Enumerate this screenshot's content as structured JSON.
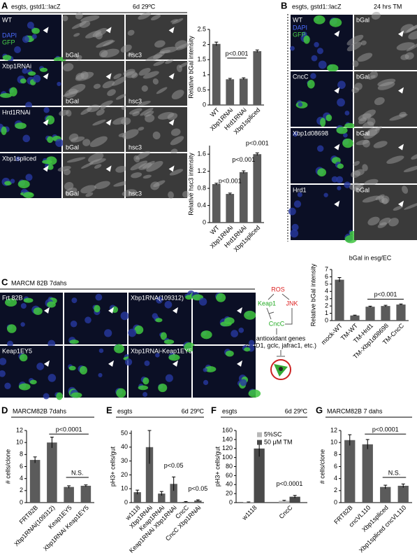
{
  "panels": {
    "A": {
      "label": "A",
      "header": "esgts, gstd1::lacZ",
      "condition": "6d 29ºC",
      "rows": [
        "WT",
        "Xbp1RNAi",
        "Hrd1RNAi",
        "Xbp1spliced"
      ],
      "stains": [
        "DAPI",
        "GFP"
      ],
      "channels": [
        "bGal",
        "hsc3"
      ]
    },
    "B": {
      "label": "B",
      "header": "esgts, gstd1::lacZ",
      "condition": "24 hrs TM",
      "rows": [
        "WT",
        "CncC",
        "Xbp1d08698",
        "Hrd1"
      ],
      "stains": [
        "DAPI",
        "GFP"
      ],
      "channel": "bGal"
    },
    "C": {
      "label": "C",
      "header": "MARCM 82B  7dahs",
      "genotypes": [
        "Frt 82B",
        "Xbp1RNA(109312)",
        "Keap1EY5",
        "Xbp1RNAi-Keap1EY5"
      ]
    },
    "diagram": {
      "nodes": [
        "ROS",
        "Keap1",
        "JNK",
        "CncC",
        "antioxidant genes",
        "(gstD1, gclc, jafrac1, etc.)"
      ]
    }
  },
  "chart_data": [
    {
      "type": "bar",
      "ylabel": "Relative bGal intensity",
      "categories": [
        "WT",
        "Xbp1RNAi",
        "Hrd1RNAi",
        "Xbp1spliced"
      ],
      "values": [
        2.02,
        0.85,
        0.87,
        1.78
      ],
      "errors": [
        0.06,
        0.03,
        0.03,
        0.04
      ],
      "color": "#5b5b5b",
      "ylim": [
        0,
        2.5
      ],
      "yticks": [
        0,
        0.5,
        1,
        1.5,
        2,
        2.5
      ],
      "annotations": [
        "p<0.001"
      ]
    },
    {
      "type": "bar",
      "ylabel": "Relative hsc3 intensity",
      "categories": [
        "WT",
        "Xbp1RNAi",
        "Hrd1RNAi",
        "Xbp1spliced"
      ],
      "values": [
        0.9,
        0.67,
        1.18,
        1.6
      ],
      "errors": [
        0.02,
        0.02,
        0.03,
        0.03
      ],
      "color": "#5b5b5b",
      "ylim": [
        0,
        1.8
      ],
      "yticks": [
        0,
        0.4,
        0.8,
        1.2,
        1.6
      ],
      "annotations": [
        "p<0.001",
        "p<0.001",
        "p<0.001"
      ]
    },
    {
      "type": "bar",
      "title": "bGal in esg/EC",
      "ylabel": "Relative bGal intensity",
      "categories": [
        "mock-WT",
        "TM-WT",
        "TM-Hrd1",
        "TM-Xbp1d08698",
        "TM-CncC"
      ],
      "values": [
        5.6,
        0.7,
        1.9,
        2.0,
        2.2
      ],
      "errors": [
        0.3,
        0.05,
        0.08,
        0.1,
        0.08
      ],
      "color": "#5b5b5b",
      "ylim": [
        0,
        7
      ],
      "yticks": [
        0,
        1,
        2,
        3,
        4,
        5,
        6,
        7
      ],
      "annotations": [
        "p<0.001"
      ]
    },
    {
      "type": "bar",
      "panel": "D",
      "title": "MARCM82B  7dahs",
      "ylabel": "# cells/clone",
      "categories": [
        "FRT82B",
        "Xbp1RNAi(109312)",
        "Keap1EY5",
        "Xbp1RNAi Keap1EY5"
      ],
      "values": [
        7.1,
        10,
        2.6,
        2.8
      ],
      "errors": [
        0.5,
        0.9,
        0.2,
        0.15
      ],
      "color": "#5b5b5b",
      "ylim": [
        0,
        12
      ],
      "yticks": [
        0,
        2,
        4,
        6,
        8,
        10,
        12
      ],
      "annotations": [
        "p<0.0001",
        "N.S."
      ]
    },
    {
      "type": "bar",
      "panel": "E",
      "title": "esgts",
      "subtitle": "6d 29ºC",
      "ylabel": "pH3+ cells/gut",
      "categories": [
        "w1118",
        "Xbp1RNAi",
        "Keap1RNAi",
        "Keap1RNAi Xbp1RNAi",
        "CncC",
        "CncC Xbp1RNAi"
      ],
      "values": [
        7.5,
        40,
        6.5,
        13.5,
        0.5,
        1.5
      ],
      "errors": [
        1.5,
        12,
        1.5,
        5,
        0.3,
        0.5
      ],
      "color": "#5b5b5b",
      "ylim": [
        0,
        52
      ],
      "yticks": [
        0,
        10,
        20,
        30,
        40,
        50
      ],
      "annotations": [
        "p<0.05",
        "p<0.05"
      ]
    },
    {
      "type": "bar",
      "panel": "F",
      "title": "esgts",
      "subtitle": "6d 29ºC",
      "ylabel": "pH3+ cells/gut",
      "categories": [
        "w1118",
        "CncC"
      ],
      "series": [
        {
          "name": "5%SC",
          "color": "#b8b8b8",
          "values": [
            1,
            4
          ],
          "errors": [
            0.5,
            1
          ]
        },
        {
          "name": "50 μM TM",
          "color": "#4a4a4a",
          "values": [
            120,
            13
          ],
          "errors": [
            18,
            3
          ]
        }
      ],
      "ylim": [
        0,
        160
      ],
      "yticks": [
        0,
        20,
        40,
        60,
        80,
        100,
        120,
        140,
        160
      ],
      "annotations": [
        "p<0.0001"
      ]
    },
    {
      "type": "bar",
      "panel": "G",
      "title": "MARCM82B 7 dahs",
      "ylabel": "# cells/clone",
      "categories": [
        "FRT82B",
        "cncVL110",
        "Xbp1spliced",
        "Xbp1spliced cncVL110"
      ],
      "values": [
        10.4,
        9.7,
        2.6,
        2.8
      ],
      "errors": [
        0.9,
        0.8,
        0.3,
        0.3
      ],
      "color": "#5b5b5b",
      "ylim": [
        0,
        12
      ],
      "yticks": [
        0,
        2,
        4,
        6,
        8,
        10,
        12
      ],
      "annotations": [
        "p<0.0001",
        "N.S."
      ]
    }
  ]
}
